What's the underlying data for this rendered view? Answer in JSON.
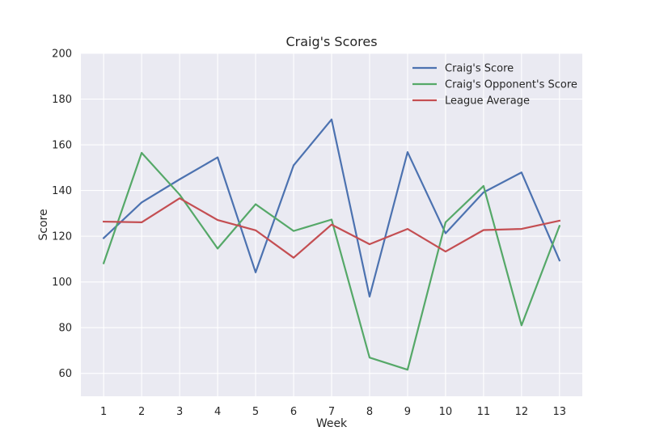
{
  "chart_data": {
    "type": "line",
    "title": "Craig's Scores",
    "xlabel": "Week",
    "ylabel": "Score",
    "x": [
      1,
      2,
      3,
      4,
      5,
      6,
      7,
      8,
      9,
      10,
      11,
      12,
      13
    ],
    "xlim": [
      0.4,
      13.6
    ],
    "ylim": [
      50,
      200
    ],
    "yticks": [
      60,
      80,
      100,
      120,
      140,
      160,
      180,
      200
    ],
    "grid": true,
    "legend_position": "top-right",
    "colors": {
      "background": "#eaeaf2",
      "grid": "#ffffff"
    },
    "series": [
      {
        "name": "Craig's Score",
        "color": "#4c72b0",
        "values": [
          119.2,
          134.8,
          144.9,
          154.5,
          104.2,
          151.0,
          171.1,
          93.6,
          156.8,
          121.3,
          139.2,
          147.9,
          109.4
        ]
      },
      {
        "name": "Craig's Opponent's Score",
        "color": "#55a868",
        "values": [
          108.2,
          156.5,
          138.2,
          114.6,
          134.0,
          122.3,
          127.3,
          66.9,
          61.6,
          126.1,
          142.0,
          81.0,
          124.5
        ]
      },
      {
        "name": "League Average",
        "color": "#c44e52",
        "values": [
          126.4,
          126.1,
          136.6,
          127.1,
          122.6,
          110.6,
          125.1,
          116.5,
          123.2,
          113.3,
          122.7,
          123.2,
          126.8
        ]
      }
    ]
  }
}
